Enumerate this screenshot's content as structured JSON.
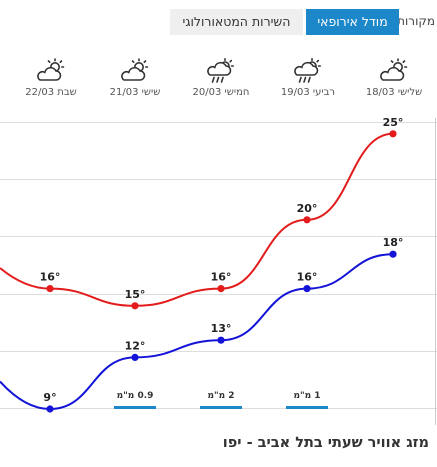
{
  "sources": {
    "label": "מקורות:",
    "active_label": "מודל אירופאי",
    "inactive_label": "השירות המטאורולוגי"
  },
  "days": [
    {
      "label": "שלישי 18/03",
      "icon": "partly-cloudy-icon"
    },
    {
      "label": "רביעי 19/03",
      "icon": "cloud-rain-sun-icon"
    },
    {
      "label": "חמישי 20/03",
      "icon": "cloud-rain-sun-icon"
    },
    {
      "label": "שישי 21/03",
      "icon": "partly-cloudy-icon"
    },
    {
      "label": "שבת 22/03",
      "icon": "partly-cloudy-icon"
    }
  ],
  "chart_data": {
    "type": "line",
    "series": [
      {
        "color": "#e31b1b",
        "values": [
          25,
          20,
          16,
          15,
          16
        ]
      },
      {
        "color": "#1414d9",
        "values": [
          18,
          16,
          13,
          12,
          9
        ]
      }
    ],
    "labels": {
      "max": [
        "25°",
        "20°",
        "16°",
        "15°",
        "16°"
      ],
      "min": [
        "18°",
        "16°",
        "13°",
        "12°",
        "9°"
      ]
    },
    "precipitation": [
      {
        "value": 1,
        "label": "1 מ\"מ"
      },
      {
        "value": 2,
        "label": "2 מ\"מ"
      },
      {
        "value": 0.9,
        "label": "0.9 מ\"מ"
      }
    ],
    "precip_color": "#1c87c9"
  },
  "title": "מזג אוויר שעתי בתל אביב - יפו"
}
